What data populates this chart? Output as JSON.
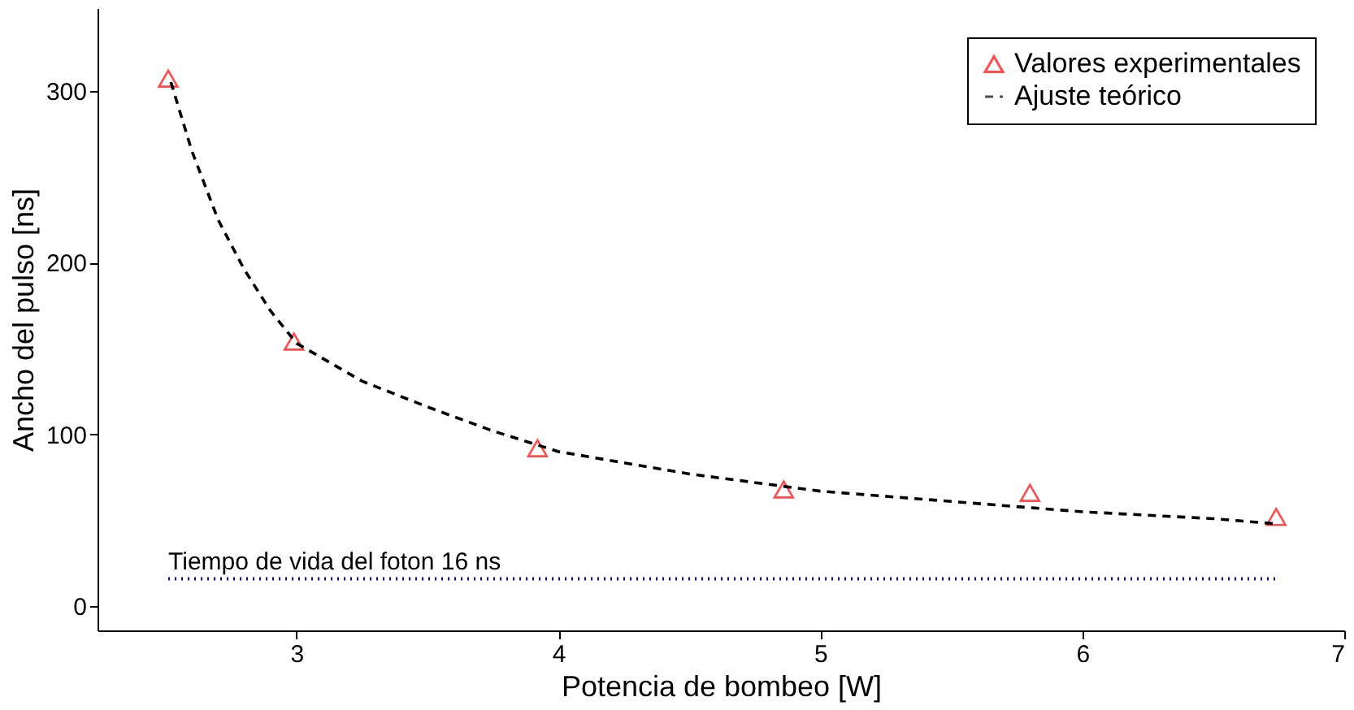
{
  "chart_data": {
    "type": "scatter",
    "xlabel": "Potencia de bombeo [W]",
    "ylabel": "Ancho del pulso [ns]",
    "xlim": [
      2.24,
      7
    ],
    "ylim": [
      -14,
      348
    ],
    "xticks": [
      3,
      4,
      5,
      6,
      7
    ],
    "yticks": [
      0,
      100,
      200,
      300
    ],
    "grid": false,
    "legend": "top right",
    "series": [
      {
        "name": "Valores experimentales",
        "marker": "triangle",
        "color": "#ff0000",
        "x": [
          2.51,
          2.99,
          3.92,
          4.86,
          5.8,
          6.74
        ],
        "values": [
          307,
          154,
          92,
          68,
          66,
          52
        ]
      },
      {
        "name": "Ajuste teórico",
        "type": "line",
        "line_style": "dashed",
        "marker": "none",
        "color": "#000000",
        "x": [
          2.52,
          2.6,
          2.7,
          2.8,
          2.9,
          3.0,
          3.25,
          3.5,
          3.75,
          4.0,
          4.5,
          5.0,
          5.5,
          6.0,
          6.5,
          6.74
        ],
        "values": [
          305,
          265,
          225,
          196,
          172,
          153,
          131,
          116,
          102,
          90,
          77,
          67,
          61,
          55,
          51,
          48
        ]
      }
    ],
    "ref_lines": [
      {
        "axis": "y",
        "value": 16,
        "label": "Tiempo de vida del foton  16 ns",
        "color": "#0000cc",
        "line_style": "dotted"
      }
    ]
  }
}
